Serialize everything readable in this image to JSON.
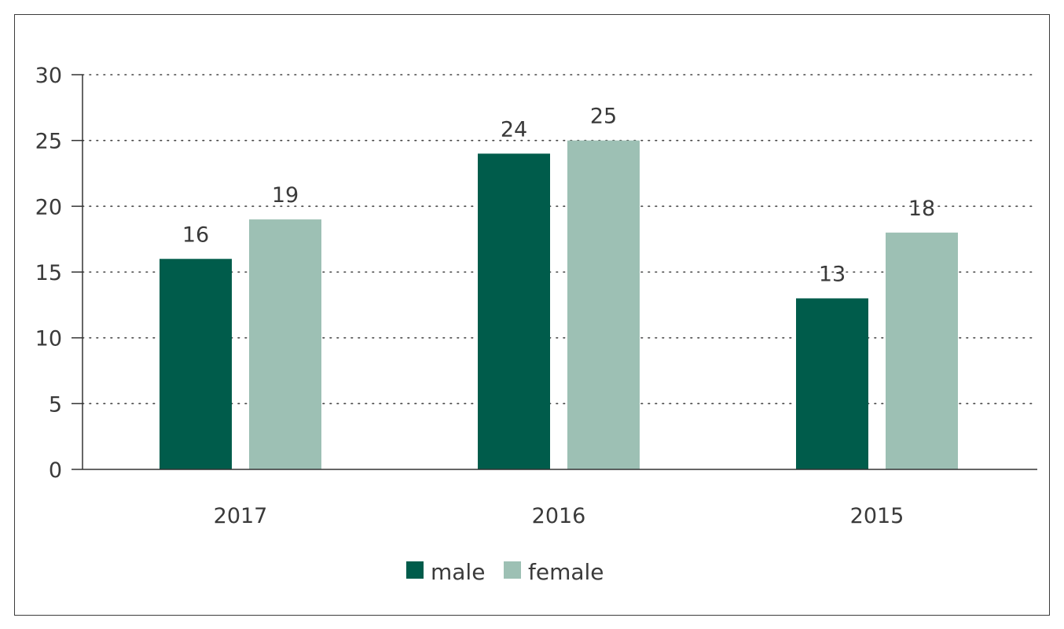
{
  "chart_data": {
    "type": "bar",
    "categories": [
      "2017",
      "2016",
      "2015"
    ],
    "series": [
      {
        "name": "male",
        "values": [
          16,
          24,
          13
        ],
        "color": "#005c4b"
      },
      {
        "name": "female",
        "values": [
          19,
          25,
          18
        ],
        "color": "#9dc0b4"
      }
    ],
    "ylim": [
      0,
      30
    ],
    "yticks": [
      0,
      5,
      10,
      15,
      20,
      25,
      30
    ],
    "grid": true,
    "legend": "bottom-center",
    "title": "",
    "xlabel": "",
    "ylabel": ""
  }
}
